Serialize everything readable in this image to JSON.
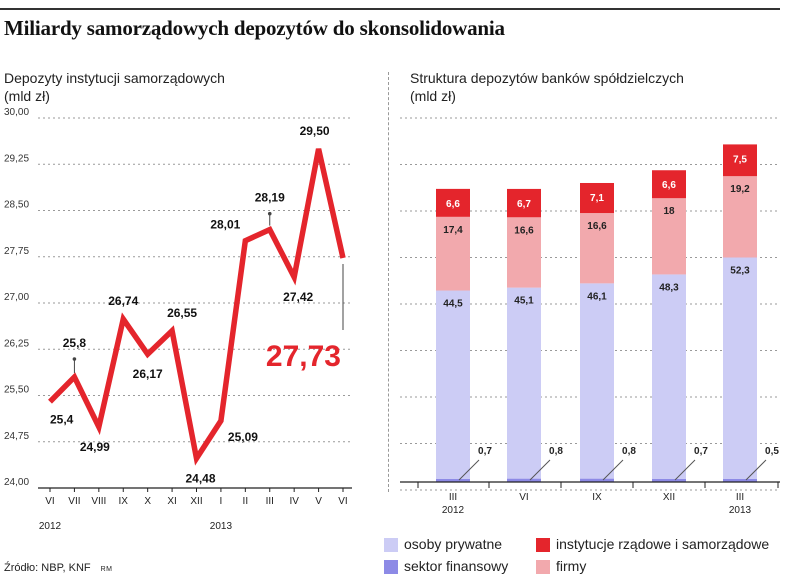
{
  "title": "Miliardy samorządowych depozytów do skonsolidowania",
  "left_subtitle": "Depozyty instytucji samorządowych\n(mld zł)",
  "right_subtitle": "Struktura depozytów banków spółdzielczych\n(mld zł)",
  "source": "Źródło: NBP, KNF",
  "source_initials": "RM",
  "colors": {
    "line": "#e4252c",
    "osoby_prywatne": "#ccccf5",
    "sektor_finansowy": "#8d8ae6",
    "instytucje": "#e4252c",
    "firmy": "#f2a9ad"
  },
  "legend": [
    {
      "key": "osoby_prywatne",
      "label": "osoby prywatne"
    },
    {
      "key": "instytucje",
      "label": "instytucje rządowe i samorządowe"
    },
    {
      "key": "sektor_finansowy",
      "label": "sektor finansowy"
    },
    {
      "key": "firmy",
      "label": "firmy"
    }
  ],
  "chart_data": [
    {
      "type": "line",
      "title": "Depozyty instytucji samorządowych",
      "ylabel": "mld zł",
      "x": [
        "VI",
        "VII",
        "VIII",
        "IX",
        "X",
        "XI",
        "XII",
        "I",
        "II",
        "III",
        "IV",
        "V",
        "VI"
      ],
      "year_labels": [
        {
          "index": 0,
          "label": "2012"
        },
        {
          "index": 7,
          "label": "2013"
        }
      ],
      "values": [
        25.4,
        25.8,
        24.99,
        26.74,
        26.17,
        26.55,
        24.48,
        25.09,
        28.01,
        28.19,
        27.42,
        29.5,
        27.73
      ],
      "labels": [
        "25,4",
        "25,8",
        "24,99",
        "26,74",
        "26,17",
        "26,55",
        "24,48",
        "25,09",
        "28,01",
        "28,19",
        "27,42",
        "29,50",
        "27,73"
      ],
      "highlight_last": true,
      "yticks": [
        "24,00",
        "24,75",
        "25,50",
        "26,25",
        "27,00",
        "27,75",
        "28,50",
        "29,25",
        "30,00"
      ],
      "ylim": [
        24.0,
        30.0
      ]
    },
    {
      "type": "bar",
      "stacked": true,
      "title": "Struktura depozytów banków spółdzielczych",
      "ylabel": "mld zł",
      "categories": [
        "III",
        "VI",
        "IX",
        "XII",
        "III"
      ],
      "year_labels": [
        {
          "index": 0,
          "label": "2012"
        },
        {
          "index": 4,
          "label": "2013"
        }
      ],
      "series": [
        {
          "name": "sektor finansowy",
          "key": "sektor_finansowy",
          "values": [
            0.7,
            0.8,
            0.8,
            0.7,
            0.5
          ],
          "labels": [
            "0,7",
            "0,8",
            "0,8",
            "0,7",
            "0,5"
          ]
        },
        {
          "name": "osoby prywatne",
          "key": "osoby_prywatne",
          "values": [
            44.5,
            45.1,
            46.1,
            48.3,
            52.3
          ],
          "labels": [
            "44,5",
            "45,1",
            "46,1",
            "48,3",
            "52,3"
          ]
        },
        {
          "name": "firmy",
          "key": "firmy",
          "values": [
            17.4,
            16.6,
            16.6,
            18.0,
            19.2
          ],
          "labels": [
            "17,4",
            "16,6",
            "16,6",
            "18",
            "19,2"
          ]
        },
        {
          "name": "instytucje rządowe i samorządowe",
          "key": "instytucje",
          "values": [
            6.6,
            6.7,
            7.1,
            6.6,
            7.5
          ],
          "labels": [
            "6,6",
            "6,7",
            "7,1",
            "6,6",
            "7,5"
          ]
        }
      ]
    }
  ]
}
